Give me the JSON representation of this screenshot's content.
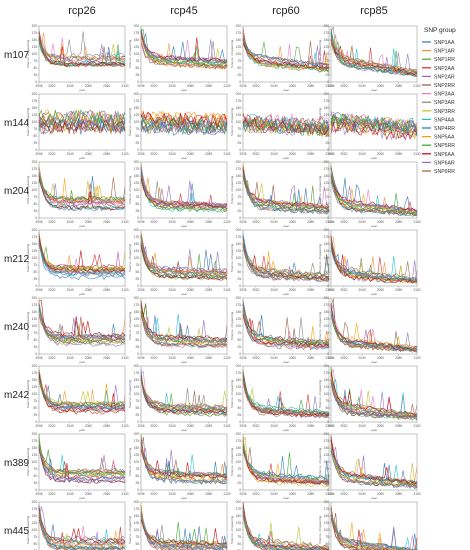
{
  "chart_data": {
    "type": "line",
    "columns": [
      "rcp26",
      "rcp45",
      "rcp60",
      "rcp85"
    ],
    "rows": [
      "m107",
      "m144",
      "m204",
      "m212",
      "m240",
      "m242",
      "m389",
      "m445"
    ],
    "xlabel": "year",
    "ylabel": "Total no. of spawning",
    "x_ticks": [
      "2006",
      "2020",
      "2040",
      "2060",
      "2080",
      "2100"
    ],
    "y_ticks": [
      "0",
      "25",
      "50",
      "75",
      "100",
      "125",
      "150",
      "175",
      "200"
    ],
    "ylim": [
      0,
      200
    ],
    "xlim": [
      2006,
      2100
    ],
    "legend": {
      "title": "SNP group",
      "placement": "right",
      "entries": [
        {
          "name": "SNP1AA",
          "color": "#3a6fb0"
        },
        {
          "name": "SNP1AR",
          "color": "#f28e2b"
        },
        {
          "name": "SNP1RR",
          "color": "#4aa02c"
        },
        {
          "name": "SNP2AA",
          "color": "#d62728"
        },
        {
          "name": "SNP2AR",
          "color": "#9467bd"
        },
        {
          "name": "SNP2RR",
          "color": "#8c564b"
        },
        {
          "name": "SNP3AA",
          "color": "#e377c2"
        },
        {
          "name": "SNP3AR",
          "color": "#7f7f7f"
        },
        {
          "name": "SNP3RR",
          "color": "#bcbd22"
        },
        {
          "name": "SNP4AA",
          "color": "#17becf"
        },
        {
          "name": "SNP4RR",
          "color": "#1f77b4"
        },
        {
          "name": "SNP5AA",
          "color": "#ff9900"
        },
        {
          "name": "SNP5RR",
          "color": "#2ca02c"
        },
        {
          "name": "SNP6AA",
          "color": "#c00000"
        },
        {
          "name": "SNP6AR",
          "color": "#8e6fc1"
        },
        {
          "name": "SNP6RR",
          "color": "#9e5a3c"
        }
      ]
    },
    "grid": false
  }
}
